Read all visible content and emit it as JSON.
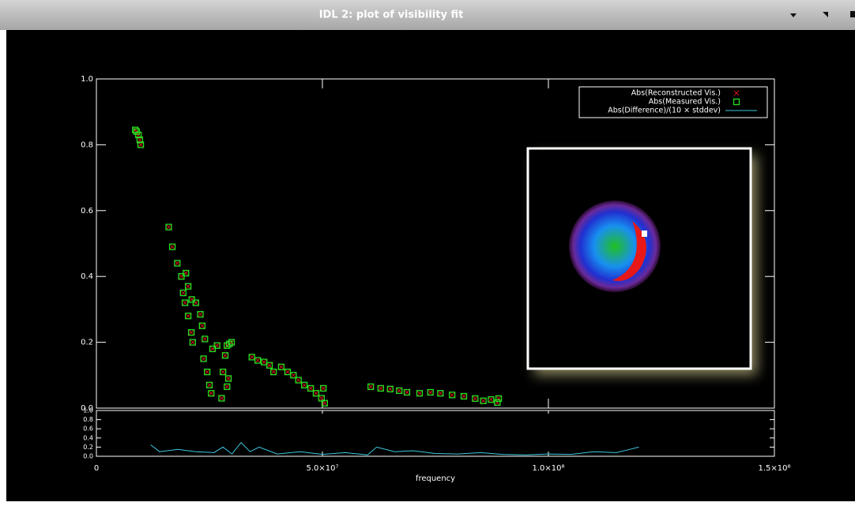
{
  "window": {
    "title": "IDL 2: plot of visibility fit"
  },
  "chart_data": [
    {
      "type": "scatter",
      "legend": "upper right",
      "xlim": [
        0,
        150000000
      ],
      "xticks": [
        0,
        50000000,
        100000000,
        150000000
      ],
      "ylim": [
        0,
        1.0
      ],
      "yticks": [
        {
          "value": 0,
          "label": "0.0"
        },
        0.2,
        0.4,
        0.6,
        0.8,
        {
          "value": 1.0,
          "label": "1.0"
        }
      ],
      "x": [
        8600000,
        8900000,
        9300000,
        9600000,
        9800000,
        16000000,
        16800000,
        17900000,
        18800000,
        19800000,
        19200000,
        20300000,
        19600000,
        21100000,
        20300000,
        22000000,
        21000000,
        23000000,
        21300000,
        23400000,
        24000000,
        23700000,
        24500000,
        25000000,
        25400000,
        25700000,
        26700000,
        27700000,
        28000000,
        28500000,
        28900000,
        29400000,
        29900000,
        28900000,
        29200000,
        34400000,
        35700000,
        37100000,
        38300000,
        39200000,
        40900000,
        42300000,
        43600000,
        44700000,
        46000000,
        47400000,
        48600000,
        49800000,
        50500000,
        50200000,
        60700000,
        62900000,
        65000000,
        67000000,
        68700000,
        71500000,
        73900000,
        76100000,
        78700000,
        81300000,
        83800000,
        85600000,
        87300000,
        89000000,
        88700000
      ],
      "series": [
        {
          "name": "Abs(Reconstructed Vis.)",
          "color": "#d01818",
          "marker": "x",
          "values": [
            0.845,
            0.84,
            0.83,
            0.815,
            0.8,
            0.55,
            0.49,
            0.44,
            0.4,
            0.41,
            0.35,
            0.37,
            0.32,
            0.33,
            0.28,
            0.32,
            0.23,
            0.285,
            0.2,
            0.25,
            0.21,
            0.15,
            0.11,
            0.07,
            0.045,
            0.18,
            0.19,
            0.03,
            0.11,
            0.16,
            0.19,
            0.195,
            0.2,
            0.065,
            0.09,
            0.155,
            0.145,
            0.14,
            0.13,
            0.11,
            0.125,
            0.11,
            0.1,
            0.085,
            0.07,
            0.06,
            0.045,
            0.03,
            0.015,
            0.06,
            0.065,
            0.06,
            0.058,
            0.053,
            0.048,
            0.045,
            0.048,
            0.045,
            0.04,
            0.036,
            0.029,
            0.022,
            0.026,
            0.029,
            0.017
          ]
        },
        {
          "name": "Abs(Measured Vis.)",
          "color": "#22e022",
          "marker": "square",
          "values": [
            0.845,
            0.84,
            0.83,
            0.815,
            0.8,
            0.55,
            0.49,
            0.44,
            0.4,
            0.41,
            0.35,
            0.37,
            0.32,
            0.33,
            0.28,
            0.32,
            0.23,
            0.285,
            0.2,
            0.25,
            0.21,
            0.15,
            0.11,
            0.07,
            0.045,
            0.18,
            0.19,
            0.03,
            0.11,
            0.16,
            0.19,
            0.195,
            0.2,
            0.065,
            0.09,
            0.155,
            0.145,
            0.14,
            0.13,
            0.11,
            0.125,
            0.11,
            0.1,
            0.085,
            0.07,
            0.06,
            0.045,
            0.03,
            0.015,
            0.06,
            0.065,
            0.06,
            0.058,
            0.053,
            0.048,
            0.045,
            0.048,
            0.045,
            0.04,
            0.036,
            0.029,
            0.022,
            0.026,
            0.029,
            0.017
          ]
        }
      ]
    },
    {
      "type": "line",
      "x_label": "frequency",
      "xlim": [
        0,
        150000000
      ],
      "xticks": [
        0,
        {
          "value": 50000000,
          "label": "5.0×10⁷"
        },
        {
          "value": 100000000,
          "label": "1.0×10⁸"
        },
        {
          "value": 150000000,
          "label": "1.5×10⁸"
        }
      ],
      "ylim": [
        0,
        1.0
      ],
      "yticks": [
        {
          "value": 0,
          "label": "0.0"
        },
        0.2,
        0.4,
        0.6,
        0.8,
        {
          "value": 1.0,
          "label": "1.0"
        }
      ],
      "x": [
        12000000,
        14000000,
        18000000,
        22000000,
        26000000,
        28000000,
        30000000,
        32000000,
        34000000,
        36000000,
        40000000,
        45000000,
        50000000,
        55000000,
        60000000,
        62000000,
        66000000,
        70000000,
        75000000,
        80000000,
        85000000,
        90000000,
        95000000,
        100000000,
        105000000,
        110000000,
        115000000,
        118000000,
        120000000
      ],
      "series": [
        {
          "name": "Abs(Difference)/(10 × stddev)",
          "color": "#3cc8e0",
          "values": [
            0.25,
            0.1,
            0.15,
            0.1,
            0.08,
            0.2,
            0.05,
            0.3,
            0.1,
            0.2,
            0.05,
            0.1,
            0.04,
            0.08,
            0.03,
            0.2,
            0.1,
            0.12,
            0.06,
            0.05,
            0.08,
            0.04,
            0.03,
            0.05,
            0.04,
            0.1,
            0.08,
            0.15,
            0.2
          ]
        }
      ]
    }
  ]
}
